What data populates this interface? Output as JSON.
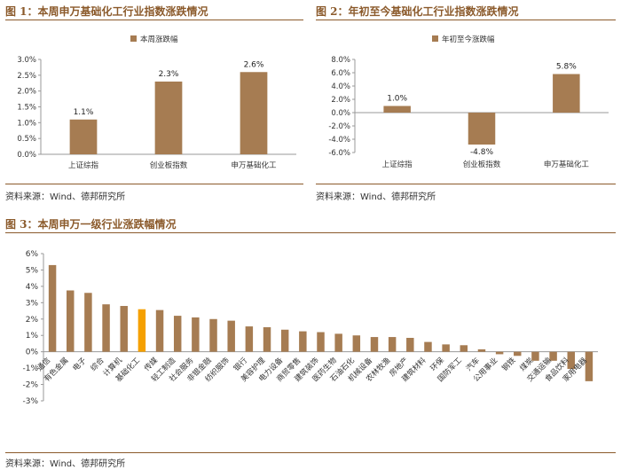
{
  "colors": {
    "bar": "#A67C52",
    "highlight": "#F5A000",
    "title": "#8B5A2B",
    "axis": "#999999"
  },
  "panels": {
    "p1": {
      "title": "图 1：本周申万基础化工行业指数涨跌情况",
      "source": "资料来源：Wind、德邦研究所"
    },
    "p2": {
      "title": "图 2：年初至今基础化工行业指数涨跌情况",
      "source": "资料来源：Wind、德邦研究所"
    },
    "p3": {
      "title": "图 3：本周申万一级行业涨跌幅情况",
      "source": "资料来源：Wind、德邦研究所"
    }
  },
  "chart_data": [
    {
      "type": "bar",
      "legend": "本周涨跌幅",
      "legend_position": "top-center",
      "categories": [
        "上证综指",
        "创业板指数",
        "申万基础化工"
      ],
      "values": [
        1.1,
        2.3,
        2.6
      ],
      "value_labels": [
        "1.1%",
        "2.3%",
        "2.6%"
      ],
      "ylim": [
        0,
        3
      ],
      "yticks": [
        0,
        0.5,
        1.0,
        1.5,
        2.0,
        2.5,
        3.0
      ],
      "ytick_labels": [
        "0.0%",
        "0.5%",
        "1.0%",
        "1.5%",
        "2.0%",
        "2.5%",
        "3.0%"
      ]
    },
    {
      "type": "bar",
      "legend": "年初至今涨跌幅",
      "legend_position": "top-center",
      "categories": [
        "上证综指",
        "创业板指数",
        "申万基础化工"
      ],
      "values": [
        1.0,
        -4.8,
        5.8
      ],
      "value_labels": [
        "1.0%",
        "-4.8%",
        "5.8%"
      ],
      "ylim": [
        -6,
        8
      ],
      "yticks": [
        -6,
        -4,
        -2,
        0,
        2,
        4,
        6,
        8
      ],
      "ytick_labels": [
        "-6.0%",
        "-4.0%",
        "-2.0%",
        "0.0%",
        "2.0%",
        "4.0%",
        "6.0%",
        "8.0%"
      ]
    },
    {
      "type": "bar",
      "categories": [
        "通信",
        "有色金属",
        "电子",
        "综合",
        "计算机",
        "基础化工",
        "传媒",
        "轻工制造",
        "社会服务",
        "非银金融",
        "纺织服饰",
        "银行",
        "美容护理",
        "电力设备",
        "商贸零售",
        "建筑装饰",
        "医药生物",
        "石油石化",
        "机械设备",
        "农林牧渔",
        "房地产",
        "建筑材料",
        "环保",
        "国防军工",
        "汽车",
        "公用事业",
        "钢铁",
        "煤炭",
        "交通运输",
        "食品饮料",
        "家用电器"
      ],
      "values": [
        5.3,
        3.75,
        3.6,
        2.9,
        2.8,
        2.6,
        2.55,
        2.2,
        2.1,
        2.0,
        1.9,
        1.55,
        1.5,
        1.35,
        1.25,
        1.2,
        1.1,
        1.0,
        0.9,
        0.9,
        0.85,
        0.6,
        0.45,
        0.4,
        0.15,
        -0.15,
        -0.25,
        -0.55,
        -0.55,
        -1.05,
        -1.8
      ],
      "highlight": "基础化工",
      "ylim": [
        -3,
        6
      ],
      "yticks": [
        -3,
        -2,
        -1,
        0,
        1,
        2,
        3,
        4,
        5,
        6
      ],
      "ytick_labels": [
        "-3%",
        "-2%",
        "-1%",
        "0%",
        "1%",
        "2%",
        "3%",
        "4%",
        "5%",
        "6%"
      ]
    }
  ]
}
